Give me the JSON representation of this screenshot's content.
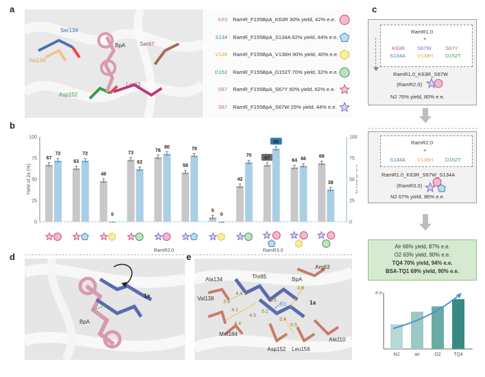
{
  "panels": {
    "a": "a",
    "b": "b",
    "c": "c",
    "d": "d",
    "e": "e"
  },
  "panel_a": {
    "labels": {
      "ser134": "Ser134",
      "val138": "Val138",
      "bpa": "BpA",
      "ser67": "Ser67",
      "lys63": "Lys63",
      "asp152": "Asp152"
    },
    "mutations": [
      {
        "res": "K63",
        "text": "RamR_F155BpA_K63R 30% yield, 42% e.e.",
        "res_color": "#c47b8c",
        "shape": "circle",
        "fill": "#f2b8cf",
        "stroke": "#c0567e"
      },
      {
        "res": "S134",
        "text": "RamR_F155BpA_S134A 62% yield, 44% e.e.",
        "res_color": "#3a82b5",
        "shape": "pentagon",
        "fill": "#bcdcf3",
        "stroke": "#3a82b5"
      },
      {
        "res": "V138",
        "text": "RamR_F155BpA_V138H 90% yield, 40% e.e.",
        "res_color": "#e0a63a",
        "shape": "hexagon",
        "fill": "#f3f0a3",
        "stroke": "#d7c93a"
      },
      {
        "res": "D152",
        "text": "RamR_F155BpA_D152T 70% yield, 32% e.e.",
        "res_color": "#3f9a52",
        "shape": "circle",
        "fill": "#bfe3c0",
        "stroke": "#3f9a52"
      },
      {
        "res": "S67",
        "text": "RamR_F155BpA_S67Y 60% yield, 62% e.e.",
        "res_color": "#b36b6b",
        "shape": "star",
        "fill": "#f6c9d8",
        "stroke": "#c0567e"
      },
      {
        "res": "S67",
        "text": "RamR_F155BpA_S67W 25% yield, 44% e.e.",
        "res_color": "#b36b6b",
        "shape": "star",
        "fill": "#d9d2f1",
        "stroke": "#7c6ac4"
      }
    ]
  },
  "chart_data": {
    "type": "bar",
    "ylabel_left": "Yield of 2a (%)",
    "ylabel_right": "e.e. of 2a (%)",
    "ylim": [
      0,
      100
    ],
    "yticks": [
      0,
      25,
      50,
      75,
      100
    ],
    "series": [
      {
        "name": "Yield of 2a (%)",
        "color": "#c8c8c8",
        "values": [
          67,
          63,
          48,
          73,
          76,
          58,
          5,
          42,
          67,
          64,
          69
        ]
      },
      {
        "name": "e.e. of 2a (%)",
        "color": "#a9cfe4",
        "values": [
          72,
          72,
          0,
          62,
          80,
          78,
          0,
          70,
          86,
          66,
          38
        ]
      }
    ],
    "highlighted": {
      "yield_index": 8,
      "ee_index": 8
    },
    "group_labels": [
      "RamR2.0",
      "RamR3.0"
    ],
    "group_label_index": [
      4,
      8
    ]
  },
  "panel_c": {
    "box1": {
      "title": "RamR1.0",
      "plus": "+",
      "m1": "K63R",
      "m2": "S67W",
      "m3": "S67Y",
      "m4": "S134A",
      "m5": "V138H",
      "m6": "D152T",
      "result": "RamR1.0_K63R_S67W",
      "name": "(RamR2.0)",
      "cond": "N2 76% yield, 80% e.e."
    },
    "box2": {
      "title": "RamR2.0",
      "plus": "+",
      "m1": "S134A",
      "m2": "V138H",
      "m3": "D152T",
      "result": "RamR1.0_K63R_S67W_S134A",
      "name": "(RamR3.0)",
      "cond": "N2 67% yield, 86% e.e."
    },
    "conditions": [
      "Air 66% yield, 87% e.e.",
      "O2 63% yield, 90% e.e.",
      "TQ4 70% yield, 94% e.e.",
      "BSA-TQ1 69% yield, 90% e.e."
    ],
    "mini_chart": {
      "ylabel": "e.e.",
      "categories": [
        "N2",
        "air",
        "O2",
        "TQ4"
      ],
      "values": [
        80,
        87,
        90,
        94
      ]
    }
  },
  "panel_d": {
    "labels": {
      "sub": "1a",
      "bpa": "BpA"
    }
  },
  "panel_e": {
    "labels": {
      "ala134": "Ala134",
      "thr85": "Thr85",
      "bpa": "BpA",
      "arg63": "Arg63",
      "val138": "Val138",
      "sub": "1a",
      "met184": "Met184",
      "asp152": "Asp152",
      "leu156": "Leu156",
      "ala110": "Ala110"
    },
    "distances": [
      "3.8",
      "4.4",
      "3.9",
      "4.1",
      "4.5",
      "5.4",
      "5.5",
      "3.6",
      "6.0",
      "4.4",
      "5.2"
    ]
  }
}
